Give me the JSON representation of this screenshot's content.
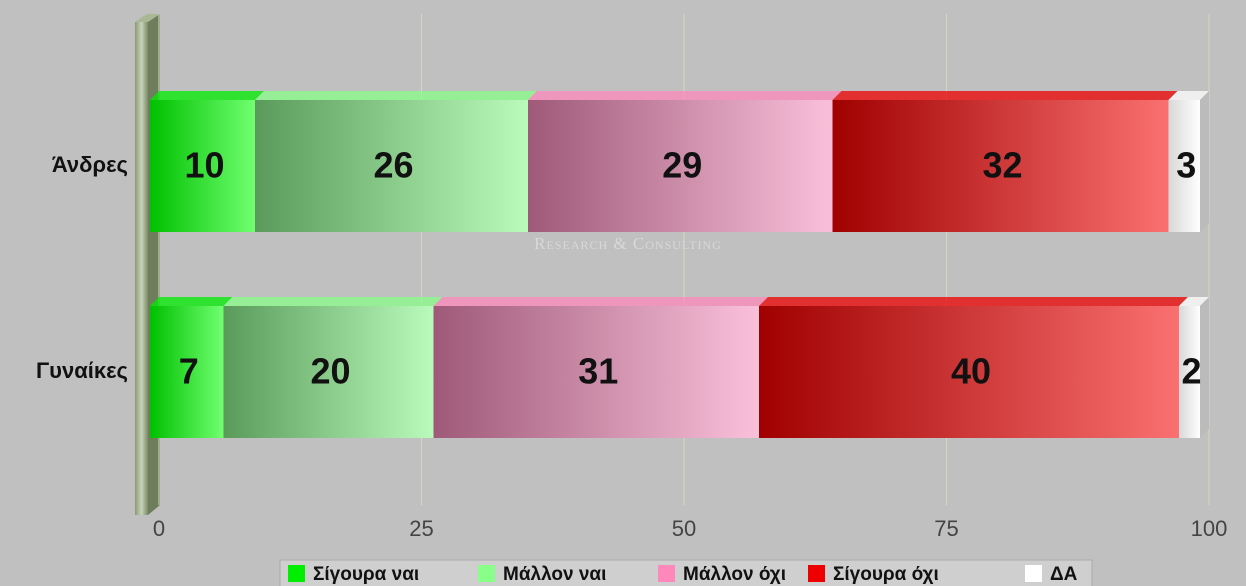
{
  "chart_data": {
    "type": "stacked-bar-horizontal",
    "categories": [
      "Άνδρες",
      "Γυναίκες"
    ],
    "series": [
      {
        "name": "Σίγουρα ναι",
        "color": "#00ee00",
        "values": [
          10,
          7
        ]
      },
      {
        "name": "Μάλλον ναι",
        "color": "#88ff88",
        "values": [
          26,
          20
        ]
      },
      {
        "name": "Μάλλον όχι",
        "color": "#ff88bb",
        "values": [
          29,
          31
        ]
      },
      {
        "name": "Σίγουρα όχι",
        "color": "#ee0000",
        "values": [
          32,
          40
        ]
      },
      {
        "name": "ΔΑ",
        "color": "#ffffff",
        "values": [
          3,
          2
        ]
      }
    ],
    "xlim": [
      0,
      100
    ],
    "xticks": [
      0,
      25,
      50,
      75,
      100
    ],
    "grid": true,
    "watermark": "Research & Consulting"
  }
}
